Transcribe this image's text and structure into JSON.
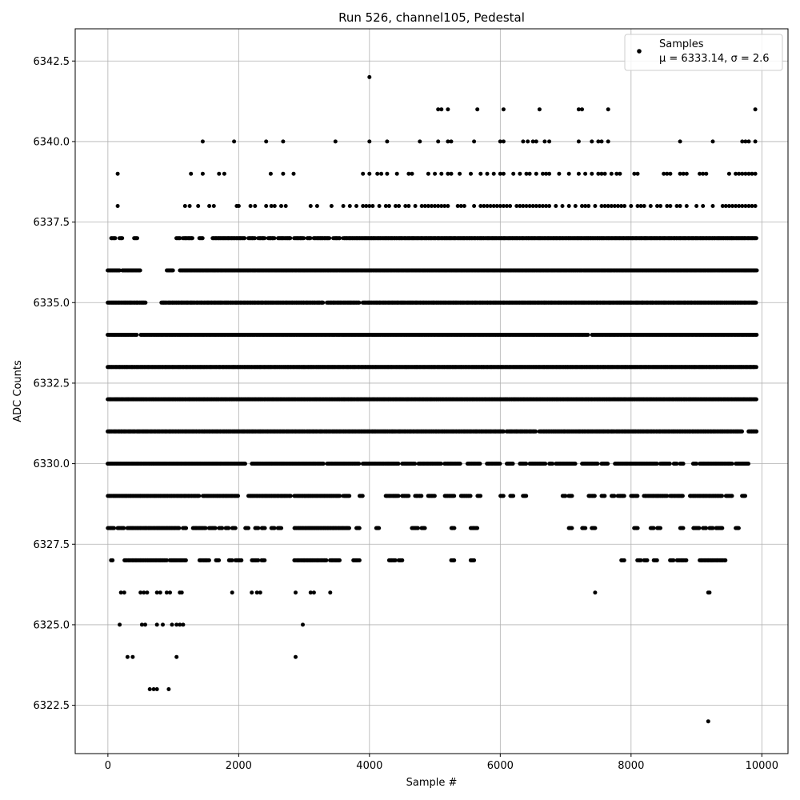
{
  "chart_data": {
    "type": "scatter",
    "title": "Run 526, channel105, Pedestal",
    "xlabel": "Sample #",
    "ylabel": "ADC Counts",
    "xlim": [
      -500,
      10400
    ],
    "ylim": [
      6321.0,
      6343.5
    ],
    "xticks": [
      0,
      2000,
      4000,
      6000,
      8000,
      10000
    ],
    "xtick_labels": [
      "0",
      "2000",
      "4000",
      "6000",
      "8000",
      "10000"
    ],
    "yticks": [
      6322.5,
      6325.0,
      6327.5,
      6330.0,
      6332.5,
      6335.0,
      6337.5,
      6340.0,
      6342.5
    ],
    "ytick_labels": [
      "6322.5",
      "6325.0",
      "6327.5",
      "6330.0",
      "6332.5",
      "6335.0",
      "6337.5",
      "6340.0",
      "6342.5"
    ],
    "grid": true,
    "legend_position": "top-right",
    "series": [
      {
        "name": "Samples",
        "stats_label": "μ = 6333.14, σ = 2.6",
        "color": "#000000",
        "levels": [
          {
            "y": 6342,
            "x": [
              4000
            ]
          },
          {
            "y": 6341,
            "x": [
              5050,
              5100,
              5200,
              5650,
              6050,
              6600,
              7200,
              7250,
              7650,
              9900
            ]
          },
          {
            "y": 6340,
            "x": [
              1450,
              1930,
              2420,
              2680,
              3480,
              4000,
              4270,
              4770,
              5050,
              5200,
              5250,
              5600,
              6000,
              6050,
              6350,
              6420,
              6500,
              6550,
              6680,
              6750,
              7200,
              7400,
              7500,
              7550,
              7650,
              8750,
              9250,
              9700,
              9750,
              9800,
              9900
            ]
          },
          {
            "y": 6339,
            "x": [
              150,
              1270,
              1450,
              1700,
              1780,
              2490,
              2680,
              2840,
              3900,
              4000,
              4120,
              4180,
              4270,
              4420,
              4600,
              4650,
              4900,
              5000,
              5100,
              5200,
              5250,
              5380,
              5550,
              5700,
              5800,
              5900,
              6000,
              6050,
              6200,
              6300,
              6400,
              6450,
              6550,
              6650,
              6700,
              6750,
              6900,
              7050,
              7200,
              7300,
              7400,
              7500,
              7550,
              7600,
              7700,
              7780,
              7830,
              8050,
              8100,
              8500,
              8550,
              8600,
              8750,
              8800,
              8850,
              9050,
              9100,
              9150,
              9500,
              9600,
              9650,
              9700,
              9750,
              9800,
              9850,
              9900
            ]
          },
          {
            "y": 6338,
            "x": [
              150,
              1180,
              1250,
              1380,
              1550,
              1620,
              1970,
              2000,
              2180,
              2250,
              2420,
              2500,
              2550,
              2650,
              2720,
              3100,
              3200,
              3420,
              3600,
              3700,
              3800,
              3900,
              3950,
              4000,
              4050,
              4150,
              4250,
              4300,
              4400,
              4450,
              4550,
              4600,
              4700,
              4800,
              4850,
              4900,
              4950,
              5000,
              5050,
              5100,
              5150,
              5200,
              5350,
              5400,
              5450,
              5600,
              5700,
              5750,
              5800,
              5850,
              5900,
              5950,
              6000,
              6050,
              6100,
              6150,
              6250,
              6300,
              6350,
              6400,
              6450,
              6500,
              6550,
              6600,
              6650,
              6700,
              6750,
              6850,
              6950,
              7050,
              7150,
              7250,
              7300,
              7350,
              7450,
              7550,
              7600,
              7650,
              7700,
              7750,
              7800,
              7850,
              7900,
              8000,
              8100,
              8150,
              8200,
              8300,
              8400,
              8450,
              8550,
              8600,
              8700,
              8750,
              8850,
              9000,
              9100,
              9250,
              9400,
              9450,
              9500,
              9550,
              9600,
              9650,
              9700,
              9750,
              9800,
              9850,
              9900
            ]
          },
          {
            "y": 6326,
            "x": [
              200,
              250,
              500,
              550,
              600,
              750,
              800,
              900,
              950,
              1100,
              1130,
              1900,
              2200,
              2280,
              2330,
              2870,
              3100,
              3150,
              3400,
              7450,
              9180,
              9200
            ]
          },
          {
            "y": 6325,
            "x": [
              180,
              520,
              570,
              750,
              840,
              980,
              1050,
              1100,
              1150,
              2980
            ]
          },
          {
            "y": 6324,
            "x": [
              300,
              380,
              1050,
              2870
            ]
          },
          {
            "y": 6323,
            "x": [
              640,
              700,
              750,
              930
            ]
          },
          {
            "y": 6322,
            "x": [
              9180
            ]
          }
        ],
        "bands": [
          {
            "y": 6337,
            "segments": [
              [
                50,
                120
              ],
              [
                180,
                220
              ],
              [
                400,
                450
              ],
              [
                1050,
                1100
              ],
              [
                1150,
                1300
              ],
              [
                1400,
                1450
              ],
              [
                1600,
                2100
              ],
              [
                2150,
                2250
              ],
              [
                2300,
                2400
              ],
              [
                2450,
                2550
              ],
              [
                2600,
                2800
              ],
              [
                2850,
                3000
              ],
              [
                3050,
                3100
              ],
              [
                3150,
                3400
              ],
              [
                3450,
                3550
              ],
              [
                3600,
                9920
              ]
            ]
          },
          {
            "y": 6336,
            "x_range": [
              0,
              9920
            ],
            "gaps": [
              [
                180,
                220
              ],
              [
                500,
                900
              ],
              [
                1000,
                1100
              ]
            ]
          },
          {
            "y": 6335,
            "x_range": [
              0,
              9920
            ],
            "gaps": [
              [
                580,
                820
              ],
              [
                3300,
                3350
              ],
              [
                3850,
                3900
              ]
            ]
          },
          {
            "y": 6334,
            "x_range": [
              0,
              9920
            ],
            "gaps": [
              [
                450,
                500
              ],
              [
                7350,
                7400
              ]
            ]
          },
          {
            "y": 6333,
            "x_range": [
              0,
              9920
            ],
            "gaps": []
          },
          {
            "y": 6332,
            "x_range": [
              0,
              9920
            ],
            "gaps": []
          },
          {
            "y": 6331,
            "x_range": [
              0,
              9920
            ],
            "gaps": [
              [
                6050,
                6100
              ],
              [
                6550,
                6600
              ],
              [
                9700,
                9800
              ]
            ]
          },
          {
            "y": 6330,
            "segments": [
              [
                0,
                2100
              ],
              [
                2200,
                3300
              ],
              [
                3350,
                3850
              ],
              [
                3900,
                4450
              ],
              [
                4500,
                4700
              ],
              [
                4750,
                5100
              ],
              [
                5150,
                5400
              ],
              [
                5500,
                5700
              ],
              [
                5800,
                6000
              ],
              [
                6100,
                6200
              ],
              [
                6300,
                6400
              ],
              [
                6450,
                6700
              ],
              [
                6750,
                6800
              ],
              [
                6850,
                7150
              ],
              [
                7250,
                7500
              ],
              [
                7550,
                7650
              ],
              [
                7750,
                8400
              ],
              [
                8450,
                8600
              ],
              [
                8650,
                8700
              ],
              [
                8750,
                8800
              ],
              [
                8950,
                9000
              ],
              [
                9050,
                9550
              ],
              [
                9600,
                9800
              ]
            ]
          },
          {
            "y": 6329,
            "segments": [
              [
                0,
                1400
              ],
              [
                1450,
                2000
              ],
              [
                2150,
                2800
              ],
              [
                2850,
                3550
              ],
              [
                3600,
                3700
              ],
              [
                3850,
                3900
              ],
              [
                4250,
                4450
              ],
              [
                4500,
                4600
              ],
              [
                4700,
                4800
              ],
              [
                4900,
                5000
              ],
              [
                5150,
                5300
              ],
              [
                5400,
                5550
              ],
              [
                5650,
                5700
              ],
              [
                6000,
                6050
              ],
              [
                6150,
                6200
              ],
              [
                6350,
                6400
              ],
              [
                6950,
                7000
              ],
              [
                7050,
                7100
              ],
              [
                7350,
                7450
              ],
              [
                7550,
                7600
              ],
              [
                7700,
                7750
              ],
              [
                7800,
                7900
              ],
              [
                8000,
                8100
              ],
              [
                8200,
                8550
              ],
              [
                8600,
                8800
              ],
              [
                8900,
                9400
              ],
              [
                9450,
                9550
              ],
              [
                9700,
                9750
              ]
            ]
          },
          {
            "y": 6328,
            "segments": [
              [
                0,
                100
              ],
              [
                150,
                250
              ],
              [
                300,
                1100
              ],
              [
                1150,
                1200
              ],
              [
                1300,
                1500
              ],
              [
                1550,
                1650
              ],
              [
                1700,
                1750
              ],
              [
                1800,
                1850
              ],
              [
                1900,
                1950
              ],
              [
                2100,
                2150
              ],
              [
                2250,
                2300
              ],
              [
                2350,
                2400
              ],
              [
                2500,
                2550
              ],
              [
                2600,
                2650
              ],
              [
                2850,
                3700
              ],
              [
                3800,
                3850
              ],
              [
                4100,
                4150
              ],
              [
                4650,
                4750
              ],
              [
                4800,
                4850
              ],
              [
                5250,
                5300
              ],
              [
                5550,
                5650
              ],
              [
                7050,
                7100
              ],
              [
                7250,
                7300
              ],
              [
                7400,
                7450
              ],
              [
                8050,
                8100
              ],
              [
                8300,
                8350
              ],
              [
                8400,
                8450
              ],
              [
                8750,
                8800
              ],
              [
                8950,
                9050
              ],
              [
                9100,
                9150
              ],
              [
                9200,
                9250
              ],
              [
                9300,
                9400
              ],
              [
                9600,
                9650
              ]
            ]
          },
          {
            "y": 6327,
            "segments": [
              [
                50,
                80
              ],
              [
                250,
                900
              ],
              [
                950,
                1200
              ],
              [
                1400,
                1550
              ],
              [
                1650,
                1700
              ],
              [
                1850,
                1900
              ],
              [
                1950,
                2050
              ],
              [
                2200,
                2300
              ],
              [
                2350,
                2400
              ],
              [
                2850,
                3350
              ],
              [
                3400,
                3550
              ],
              [
                3750,
                3850
              ],
              [
                4300,
                4400
              ],
              [
                4450,
                4500
              ],
              [
                5250,
                5300
              ],
              [
                5550,
                5600
              ],
              [
                7850,
                7900
              ],
              [
                8100,
                8150
              ],
              [
                8200,
                8250
              ],
              [
                8350,
                8400
              ],
              [
                8600,
                8650
              ],
              [
                8700,
                8850
              ],
              [
                9050,
                9450
              ]
            ]
          }
        ]
      }
    ]
  }
}
